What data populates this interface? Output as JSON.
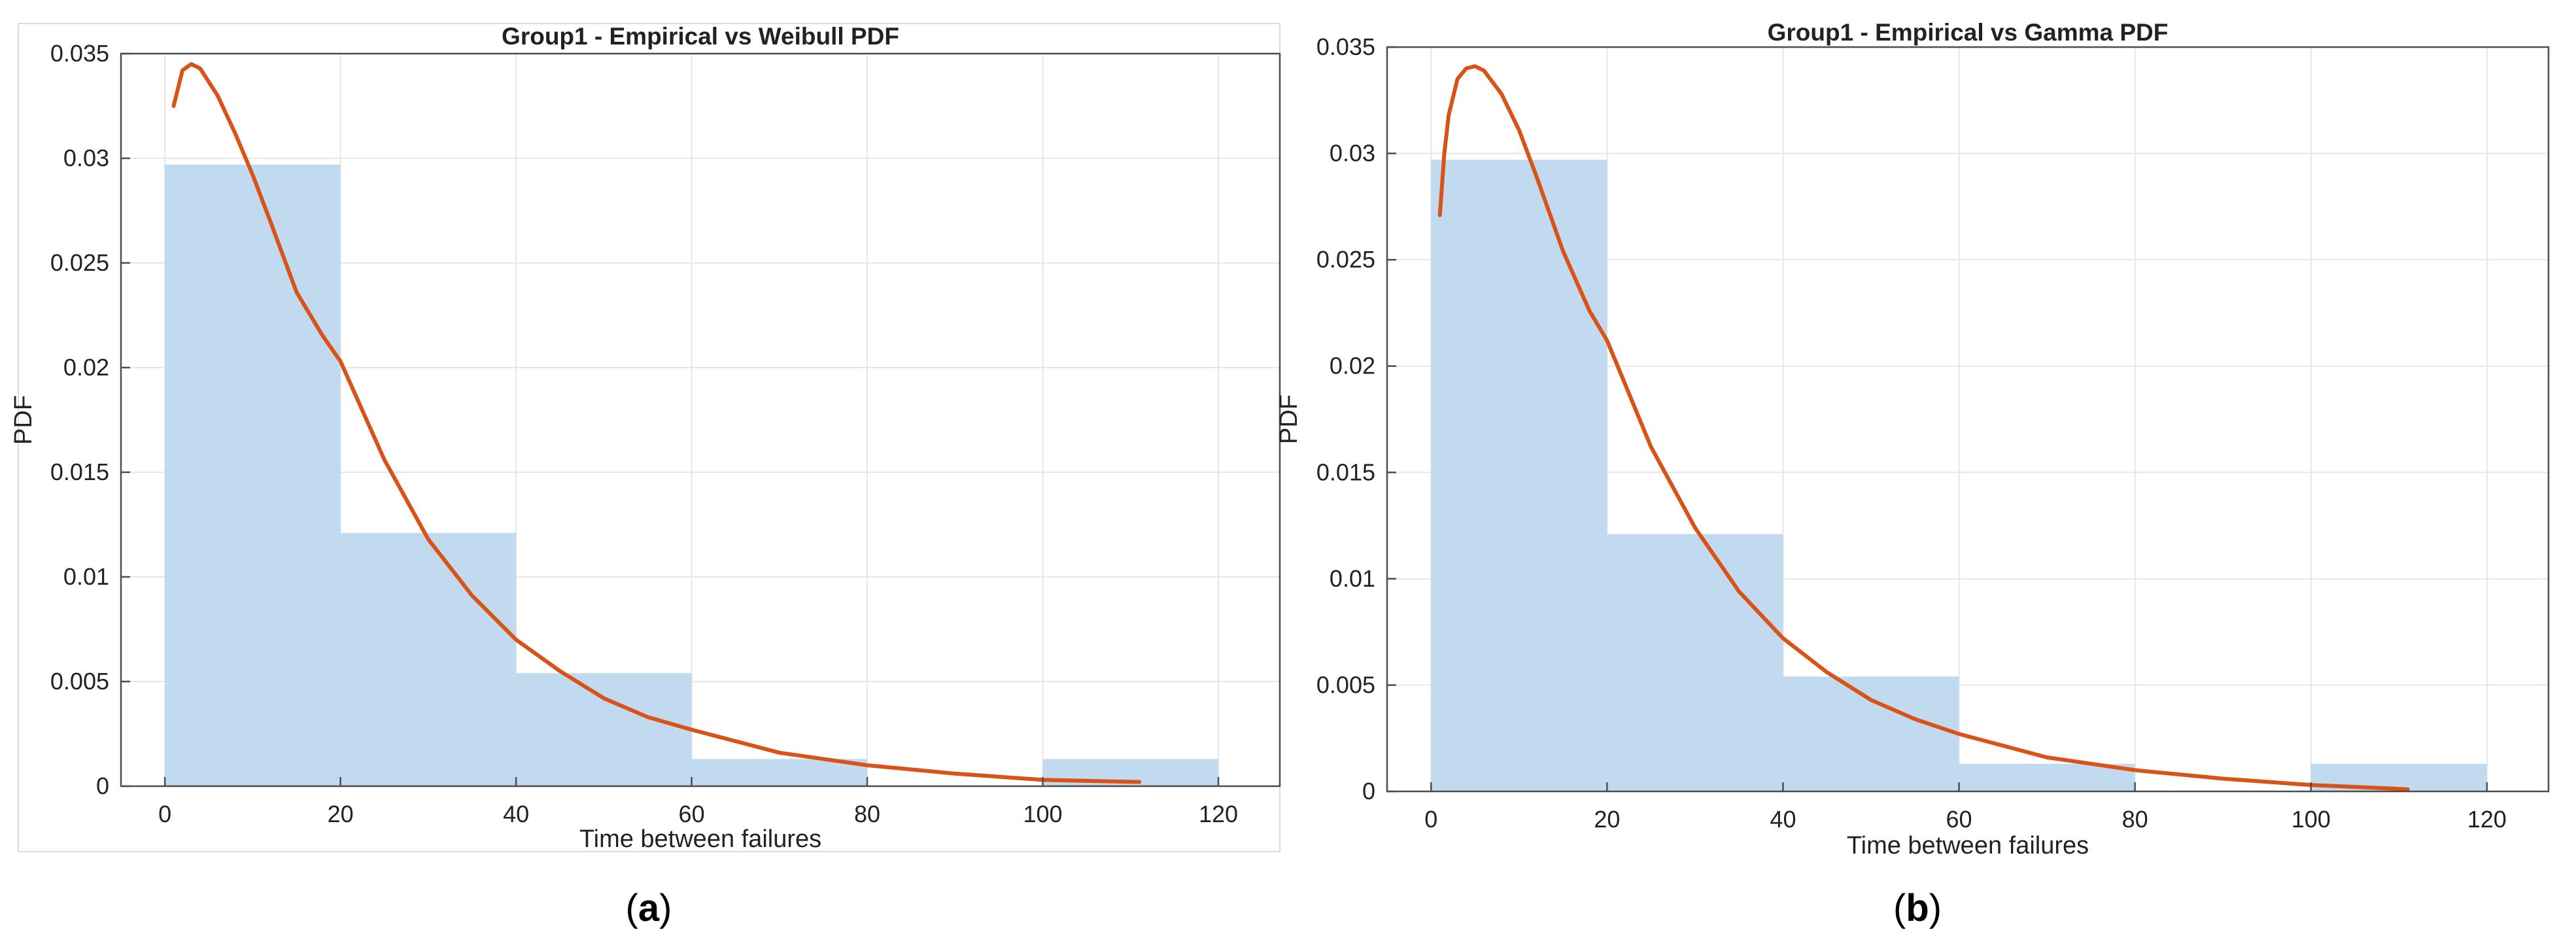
{
  "panels": [
    {
      "letter": "a",
      "paren_open": "(",
      "paren_close": ")"
    },
    {
      "letter": "b",
      "paren_open": "(",
      "paren_close": ")"
    }
  ],
  "colors": {
    "bar": "#c2daef",
    "curve": "#d95319",
    "grid": "#e6e6e6",
    "axis": "#4d4d4d",
    "text": "#222222"
  },
  "chart_data": [
    {
      "type": "bar",
      "title": "Group1 - Empirical vs Weibull PDF",
      "xlabel": "Time between failures",
      "ylabel": "PDF",
      "xlim": [
        -5,
        127
      ],
      "ylim": [
        0,
        0.035
      ],
      "xticks": [
        0,
        20,
        40,
        60,
        80,
        100,
        120
      ],
      "xtick_labels": [
        "0",
        "20",
        "40",
        "60",
        "80",
        "100",
        "120"
      ],
      "yticks": [
        0,
        0.005,
        0.01,
        0.015,
        0.02,
        0.025,
        0.03,
        0.035
      ],
      "ytick_labels": [
        "0",
        "0.005",
        "0.01",
        "0.015",
        "0.02",
        "0.025",
        "0.03",
        "0.035"
      ],
      "grid": true,
      "bin_edges": [
        0,
        20,
        40,
        60,
        80,
        100,
        120
      ],
      "values": [
        0.0297,
        0.0121,
        0.0054,
        0.0013,
        0.0,
        0.0013
      ],
      "series": [
        {
          "kind": "line",
          "x": [
            1,
            2,
            3,
            4,
            6,
            8,
            10,
            12,
            15,
            18,
            20,
            25,
            30,
            35,
            40,
            45,
            50,
            55,
            60,
            70,
            80,
            90,
            100,
            111
          ],
          "y": [
            0.0325,
            0.0342,
            0.0345,
            0.0343,
            0.033,
            0.0312,
            0.0292,
            0.027,
            0.0236,
            0.0215,
            0.0203,
            0.0156,
            0.0118,
            0.0091,
            0.007,
            0.0055,
            0.0042,
            0.0033,
            0.0027,
            0.0016,
            0.001,
            0.0006,
            0.0003,
            0.0002
          ]
        }
      ]
    },
    {
      "type": "bar",
      "title": "Group1 - Empirical vs Gamma PDF",
      "xlabel": "Time between failures",
      "ylabel": "PDF",
      "xlim": [
        -5,
        127
      ],
      "ylim": [
        0,
        0.035
      ],
      "xticks": [
        0,
        20,
        40,
        60,
        80,
        100,
        120
      ],
      "xtick_labels": [
        "0",
        "20",
        "40",
        "60",
        "80",
        "100",
        "120"
      ],
      "yticks": [
        0,
        0.005,
        0.01,
        0.015,
        0.02,
        0.025,
        0.03,
        0.035
      ],
      "ytick_labels": [
        "0",
        "0.005",
        "0.01",
        "0.015",
        "0.02",
        "0.025",
        "0.03",
        "0.035"
      ],
      "grid": true,
      "bin_edges": [
        0,
        20,
        40,
        60,
        80,
        100,
        120
      ],
      "values": [
        0.0297,
        0.0121,
        0.0054,
        0.0013,
        0.0,
        0.0013
      ],
      "series": [
        {
          "kind": "line",
          "x": [
            1,
            1.5,
            2,
            3,
            4,
            5,
            6,
            8,
            10,
            12,
            15,
            18,
            20,
            25,
            30,
            35,
            40,
            45,
            50,
            55,
            60,
            70,
            80,
            90,
            100,
            111
          ],
          "y": [
            0.0271,
            0.03,
            0.0318,
            0.0335,
            0.034,
            0.0341,
            0.0339,
            0.0328,
            0.0311,
            0.0289,
            0.0254,
            0.0226,
            0.0212,
            0.0162,
            0.0124,
            0.0094,
            0.0072,
            0.0056,
            0.0043,
            0.0034,
            0.0027,
            0.0016,
            0.001,
            0.0006,
            0.0003,
            0.0001
          ]
        }
      ]
    }
  ]
}
